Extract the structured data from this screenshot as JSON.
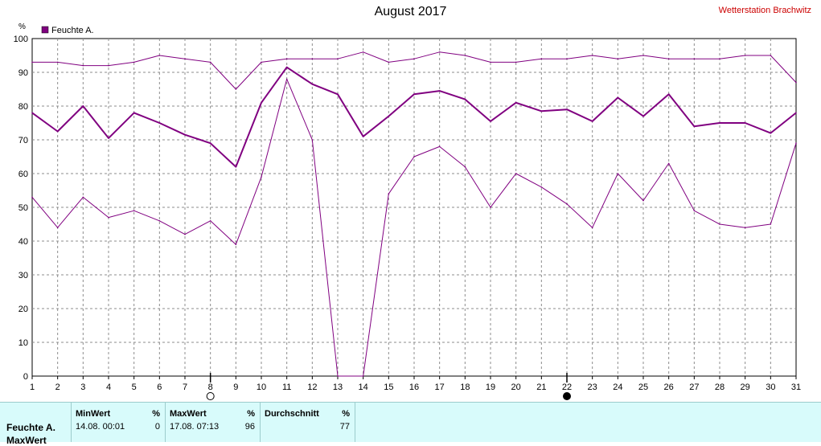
{
  "title": "August 2017",
  "station": "Wetterstation Brachwitz",
  "chart_data": {
    "type": "line",
    "title": "August 2017",
    "ylabel": "%",
    "ylim": [
      0,
      100
    ],
    "yticks": [
      0,
      10,
      20,
      30,
      40,
      50,
      60,
      70,
      80,
      90,
      100
    ],
    "x": [
      1,
      2,
      3,
      4,
      5,
      6,
      7,
      8,
      9,
      10,
      11,
      12,
      13,
      14,
      15,
      16,
      17,
      18,
      19,
      20,
      21,
      22,
      23,
      24,
      25,
      26,
      27,
      28,
      29,
      30,
      31
    ],
    "legend": "Feuchte A.",
    "legend_position": "top-left",
    "grid": true,
    "series": [
      {
        "role": "max",
        "color": "#800080",
        "values": [
          93,
          93,
          92,
          92,
          93,
          95,
          94,
          93,
          85,
          93,
          94,
          94,
          94,
          96,
          93,
          94,
          96,
          95,
          93,
          93,
          94,
          94,
          95,
          94,
          95,
          94,
          94,
          94,
          95,
          95,
          87
        ]
      },
      {
        "role": "average",
        "color": "#800080",
        "values": [
          78,
          72.5,
          80,
          70.5,
          78,
          75,
          71.5,
          69,
          62,
          81,
          91.5,
          86.5,
          83.5,
          71,
          77,
          83.5,
          84.5,
          82,
          75.5,
          81,
          78.5,
          79,
          75.5,
          82.5,
          77,
          83.5,
          74,
          75,
          75,
          72,
          78
        ]
      },
      {
        "role": "min",
        "color": "#800080",
        "values": [
          53,
          44,
          53,
          47,
          49,
          46,
          42,
          46,
          39,
          59,
          88,
          70,
          0,
          0,
          54,
          65,
          68,
          62,
          50,
          60,
          56,
          51,
          44,
          60,
          52,
          63,
          49,
          45,
          44,
          45,
          69
        ]
      }
    ],
    "markers": [
      {
        "x": 8,
        "type": "open-circle"
      },
      {
        "x": 22,
        "type": "filled-circle"
      }
    ]
  },
  "stats": {
    "row_label": "Feuchte A.",
    "row_label2": "MaxWert",
    "min_header": "MinWert",
    "min_unit": "%",
    "min_time": "14.08.  00:01",
    "min_value": "0",
    "max_header": "MaxWert",
    "max_unit": "%",
    "max_time": "17.08.  07:13",
    "max_value": "96",
    "avg_header": "Durchschnitt",
    "avg_unit": "%",
    "avg_value": "77"
  }
}
